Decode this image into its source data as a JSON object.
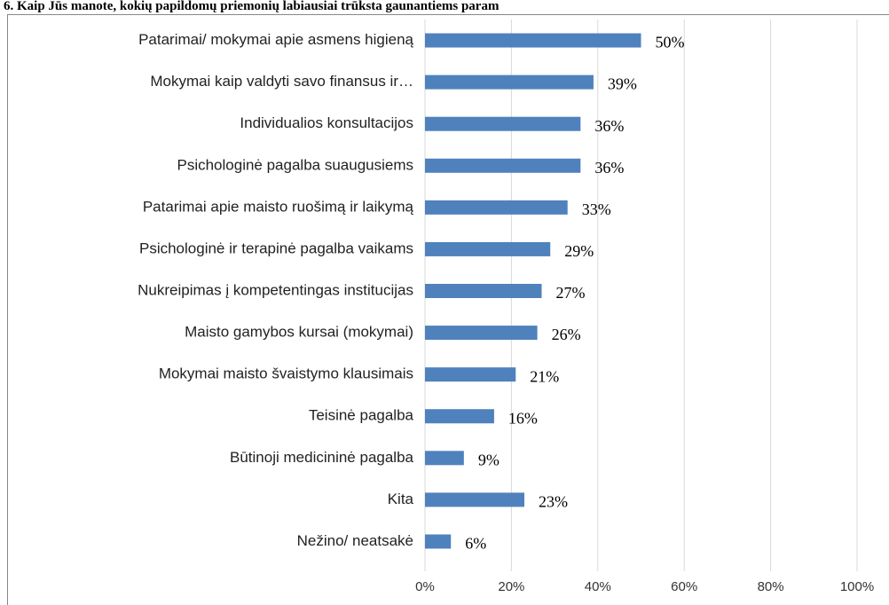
{
  "chart_data": {
    "type": "bar",
    "orientation": "horizontal",
    "title": "6. Kaip Jūs manote, kokių papildomų priemonių labiausiai trūksta gaunantiems param",
    "categories": [
      "Patarimai/ mokymai apie asmens higieną",
      "Mokymai kaip valdyti savo finansus ir…",
      "Individualios konsultacijos",
      "Psichologinė pagalba suaugusiems",
      "Patarimai apie maisto ruošimą ir laikymą",
      "Psichologinė ir terapinė pagalba vaikams",
      "Nukreipimas į kompetentingas institucijas",
      "Maisto gamybos kursai (mokymai)",
      "Mokymai maisto švaistymo klausimais",
      "Teisinė pagalba",
      "Būtinoji medicininė pagalba",
      "Kita",
      "Nežino/ neatsakė"
    ],
    "values": [
      50,
      39,
      36,
      36,
      33,
      29,
      27,
      26,
      21,
      16,
      9,
      23,
      6
    ],
    "value_labels": [
      "50%",
      "39%",
      "36%",
      "36%",
      "33%",
      "29%",
      "27%",
      "26%",
      "21%",
      "16%",
      "9%",
      "23%",
      "6%"
    ],
    "color": "#4f81bd",
    "xlim": [
      0,
      100
    ],
    "xticks": [
      {
        "value": 0,
        "label": "0%"
      },
      {
        "value": 20,
        "label": "20%"
      },
      {
        "value": 40,
        "label": "40%"
      },
      {
        "value": 60,
        "label": "60%"
      },
      {
        "value": 80,
        "label": "80%"
      },
      {
        "value": 100,
        "label": "100%"
      }
    ],
    "grid": true
  }
}
